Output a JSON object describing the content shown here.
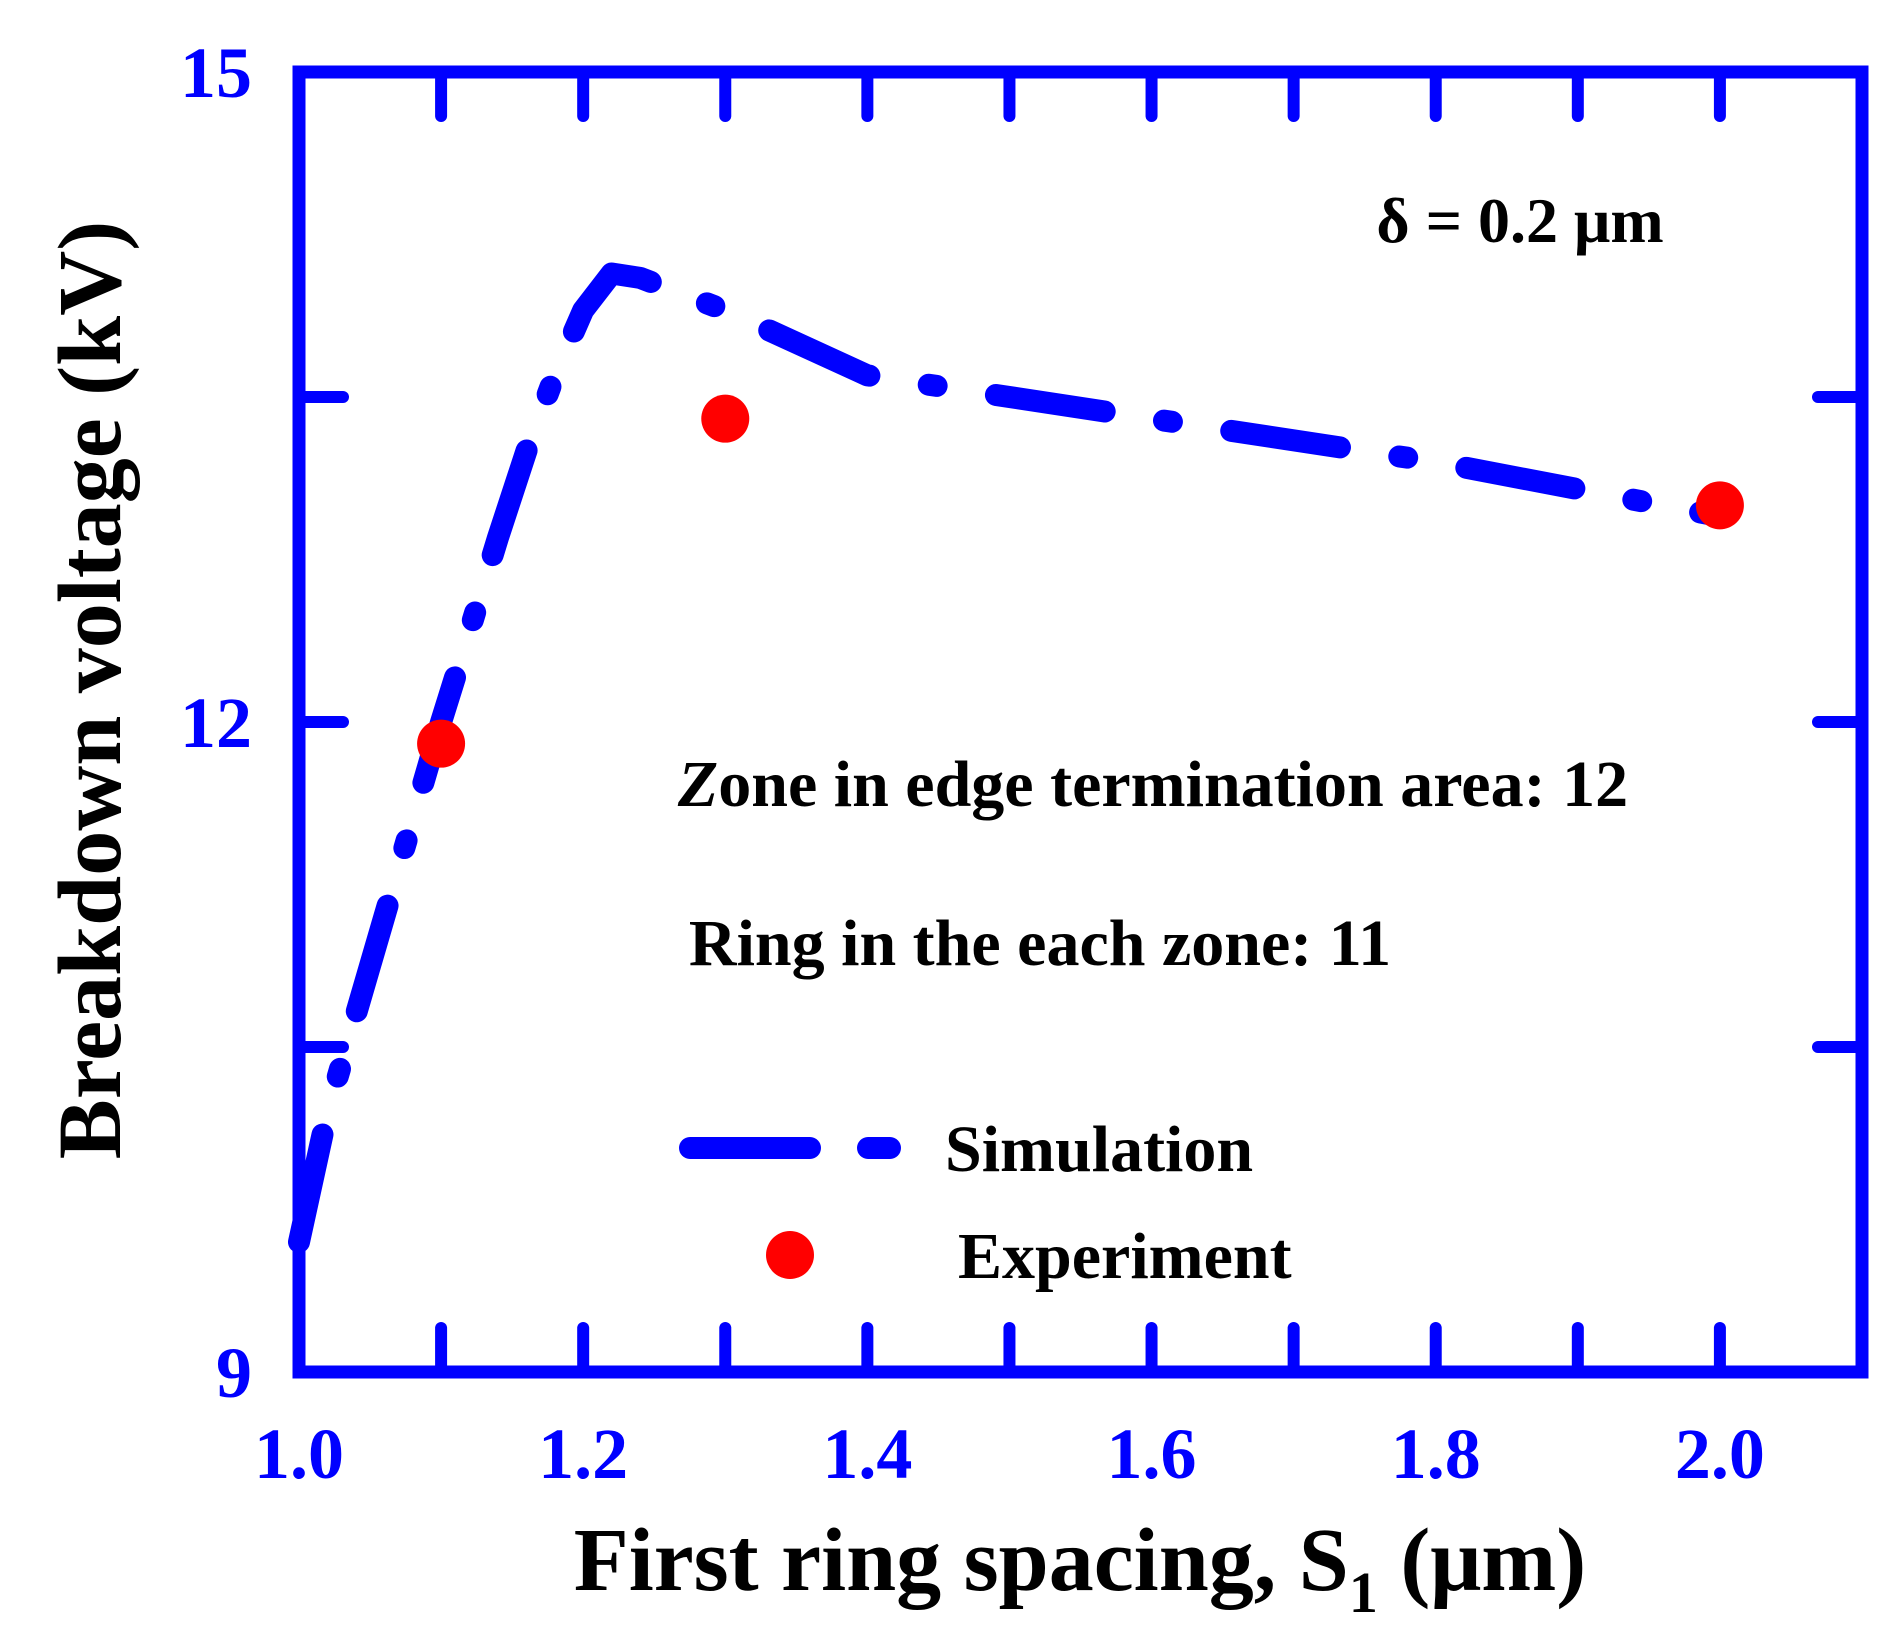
{
  "chart_data": {
    "type": "line",
    "xlabel": {
      "main": "First ring spacing, S",
      "sub": "1",
      "unit": " (μm)"
    },
    "ylabel": "Breakdown voltage (kV)",
    "xlim": [
      1.0,
      2.1
    ],
    "ylim": [
      9,
      15
    ],
    "x_ticks": [
      {
        "value": 1.0,
        "label": "1.0"
      },
      {
        "value": 1.2,
        "label": "1.2"
      },
      {
        "value": 1.4,
        "label": "1.4"
      },
      {
        "value": 1.6,
        "label": "1.6"
      },
      {
        "value": 1.8,
        "label": "1.8"
      },
      {
        "value": 2.0,
        "label": "2.0"
      }
    ],
    "x_minor_ticks": [
      1.1,
      1.3,
      1.5,
      1.7,
      1.9
    ],
    "y_ticks": [
      {
        "value": 9,
        "label": "9"
      },
      {
        "value": 12,
        "label": "12"
      },
      {
        "value": 15,
        "label": "15"
      }
    ],
    "y_minor_ticks": [
      10.5,
      13.5
    ],
    "series": [
      {
        "name": "Simulation",
        "style": "dash-dot",
        "color": "#0000ff",
        "x": [
          1.0,
          1.02,
          1.04,
          1.06,
          1.08,
          1.1,
          1.12,
          1.14,
          1.16,
          1.18,
          1.2,
          1.22,
          1.24,
          1.3,
          1.4,
          1.6,
          1.8,
          2.0
        ],
        "y": [
          9.6,
          10.2,
          10.65,
          11.1,
          11.55,
          12.0,
          12.42,
          12.85,
          13.25,
          13.6,
          13.9,
          14.07,
          14.05,
          13.9,
          13.6,
          13.4,
          13.2,
          12.95
        ]
      },
      {
        "name": "Experiment",
        "style": "marker",
        "color": "#ff0000",
        "x": [
          1.1,
          1.3,
          2.0
        ],
        "y": [
          11.9,
          13.4,
          13.0
        ]
      }
    ],
    "annotations": [
      {
        "id": "delta",
        "text": "δ = 0.2 μm"
      },
      {
        "id": "zone",
        "italic_prefix": "Z",
        "text": "one in edge termination area: 12"
      },
      {
        "id": "ring",
        "text": "Ring in the each zone: 11"
      }
    ],
    "legend": {
      "placement": "bottom-center",
      "items": [
        "Simulation",
        "Experiment"
      ]
    },
    "grid": false,
    "colors": {
      "axes": "#0000ff",
      "tick_labels": "#0000ff",
      "text": "#000000",
      "simulation": "#0000ff",
      "experiment": "#ff0000"
    }
  }
}
